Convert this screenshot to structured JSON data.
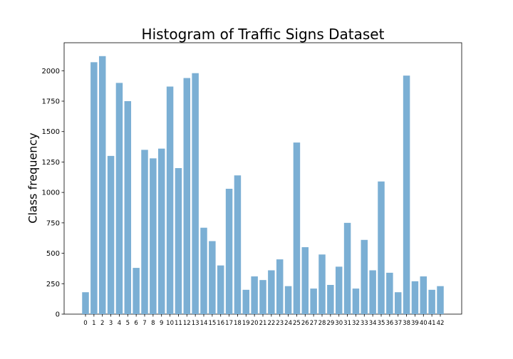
{
  "chart_data": {
    "type": "bar",
    "title": "Histogram of Traffic Signs Dataset",
    "xlabel": "",
    "ylabel": "Class frequency",
    "ylim": [
      0,
      2230
    ],
    "yticks": [
      0,
      250,
      500,
      750,
      1000,
      1250,
      1500,
      1750,
      2000
    ],
    "grid": false,
    "bar_color": "#7bafd4",
    "categories": [
      "0",
      "1",
      "2",
      "3",
      "4",
      "5",
      "6",
      "7",
      "8",
      "9",
      "10",
      "11",
      "12",
      "13",
      "14",
      "15",
      "16",
      "17",
      "18",
      "19",
      "20",
      "21",
      "22",
      "23",
      "24",
      "25",
      "26",
      "27",
      "28",
      "29",
      "30",
      "31",
      "32",
      "33",
      "34",
      "35",
      "36",
      "37",
      "38",
      "39",
      "40",
      "41",
      "42"
    ],
    "values": [
      180,
      2070,
      2120,
      1300,
      1900,
      1750,
      380,
      1350,
      1280,
      1360,
      1870,
      1200,
      1940,
      1980,
      710,
      600,
      400,
      1030,
      1140,
      200,
      310,
      280,
      360,
      450,
      230,
      1410,
      550,
      210,
      490,
      240,
      390,
      750,
      210,
      610,
      360,
      1090,
      340,
      180,
      1960,
      270,
      310,
      200,
      230
    ]
  }
}
